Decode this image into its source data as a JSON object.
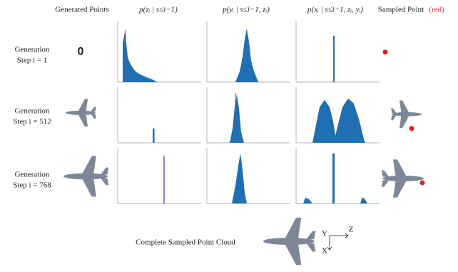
{
  "header": {
    "generated_points": "Generated Points",
    "col_z": "p(zᵢ | s≤i−1)",
    "col_y": "p(yᵢ | s≤i−1, zᵢ)",
    "col_x": "p(xᵢ | s≤i−1, zᵢ, yᵢ)",
    "sampled_point": "Sampled Point",
    "sampled_point_note": "(red)"
  },
  "rows": [
    {
      "line1": "Generation",
      "line2": "Step i = 1",
      "marker": "0"
    },
    {
      "line1": "Generation",
      "line2": "Step i = 512"
    },
    {
      "line1": "Generation",
      "line2": "Step i = 768"
    }
  ],
  "caption": "Complete Sampled Point Cloud",
  "axes": {
    "y": "Y",
    "z": "Z",
    "x": "X"
  }
}
